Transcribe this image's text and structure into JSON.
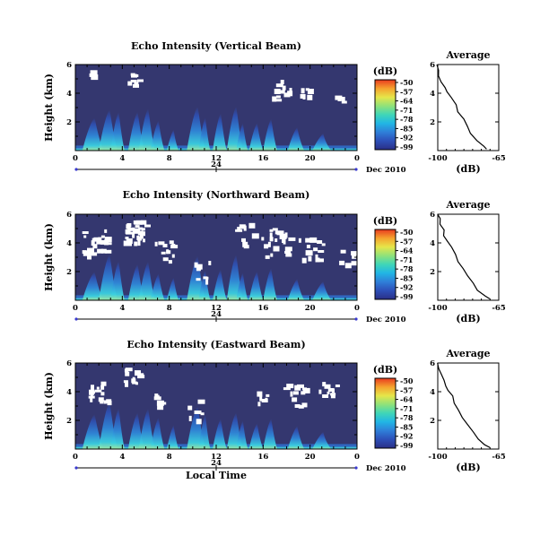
{
  "colors": {
    "background_field": "#34376f",
    "gap": "#ffffff",
    "colormap": [
      "#2a2f86",
      "#2d4fb8",
      "#2f7fd8",
      "#21b5e5",
      "#3fd6b8",
      "#8fe27a",
      "#e6e64a",
      "#f5a32e",
      "#e83a1f"
    ],
    "date_axis_accent": "#3a3ad0"
  },
  "chart_data": [
    {
      "type": "heatmap",
      "title": "Echo Intensity (Vertical Beam)",
      "ylabel": "Height (km)",
      "x_ticks": [
        "0",
        "4",
        "8",
        "12",
        "16",
        "20",
        "0"
      ],
      "xlim_hours": [
        0,
        24
      ],
      "y_ticks": [
        "2",
        "4",
        "6"
      ],
      "ylim_km": [
        0,
        6
      ],
      "colorbar": {
        "unit": "(dB)",
        "ticks": [
          "-50",
          "-57",
          "-64",
          "-71",
          "-78",
          "-85",
          "-92",
          "-99"
        ]
      },
      "date_axis": {
        "day": "24",
        "month_year": "Dec 2010"
      },
      "profile": {
        "title": "Average",
        "xlabel": "(dB)",
        "x_ticks": [
          "-100",
          "-65"
        ],
        "y_ticks": [
          "2",
          "4",
          "6"
        ],
        "xlim": [
          -100,
          -65
        ],
        "ylim": [
          0,
          6
        ],
        "x": [
          -72,
          -74,
          -78,
          -81,
          -83,
          -85,
          -88,
          -90,
          -92,
          -94,
          -96,
          -98,
          -99,
          -99,
          -100
        ],
        "y": [
          0.1,
          0.3,
          0.7,
          1.2,
          1.7,
          2.2,
          2.7,
          3.2,
          3.7,
          4.1,
          4.4,
          4.8,
          5.2,
          5.6,
          6.0
        ]
      }
    },
    {
      "type": "heatmap",
      "title": "Echo Intensity (Northward Beam)",
      "ylabel": "Height (km)",
      "x_ticks": [
        "0",
        "4",
        "8",
        "12",
        "16",
        "20",
        "0"
      ],
      "xlim_hours": [
        0,
        24
      ],
      "y_ticks": [
        "2",
        "4",
        "6"
      ],
      "ylim_km": [
        0,
        6
      ],
      "colorbar": {
        "unit": "(dB)",
        "ticks": [
          "-50",
          "-57",
          "-64",
          "-71",
          "-78",
          "-85",
          "-92",
          "-99"
        ]
      },
      "date_axis": {
        "day": "24",
        "month_year": "Dec 2010"
      },
      "profile": {
        "title": "Average",
        "xlabel": "(dB)",
        "x_ticks": [
          "-100",
          "-65"
        ],
        "y_ticks": [
          "2",
          "4",
          "6"
        ],
        "xlim": [
          -100,
          -65
        ],
        "ylim": [
          0,
          6
        ],
        "x": [
          -70,
          -73,
          -77,
          -80,
          -83,
          -86,
          -88,
          -90,
          -92,
          -94,
          -96,
          -97,
          -99,
          -99,
          -100
        ],
        "y": [
          0.1,
          0.3,
          0.7,
          1.2,
          1.7,
          2.2,
          2.7,
          3.2,
          3.7,
          4.1,
          4.5,
          4.9,
          5.3,
          5.7,
          6.0
        ]
      }
    },
    {
      "type": "heatmap",
      "title": "Echo Intensity (Eastward Beam)",
      "ylabel": "Height (km)",
      "xlabel": "Local Time",
      "x_ticks": [
        "0",
        "4",
        "8",
        "12",
        "16",
        "20",
        "0"
      ],
      "xlim_hours": [
        0,
        24
      ],
      "y_ticks": [
        "2",
        "4",
        "6"
      ],
      "ylim_km": [
        0,
        6
      ],
      "colorbar": {
        "unit": "(dB)",
        "ticks": [
          "-50",
          "-57",
          "-64",
          "-71",
          "-78",
          "-85",
          "-92",
          "-99"
        ]
      },
      "date_axis": {
        "day": "24",
        "month_year": "Dec 2010"
      },
      "profile": {
        "title": "Average",
        "xlabel": "(dB)",
        "x_ticks": [
          "-100",
          "-65"
        ],
        "y_ticks": [
          "2",
          "4",
          "6"
        ],
        "xlim": [
          -100,
          -65
        ],
        "ylim": [
          0,
          6
        ],
        "x": [
          -70,
          -73,
          -77,
          -80,
          -83,
          -86,
          -88,
          -90,
          -92,
          -94,
          -95,
          -97,
          -98,
          -99,
          -100
        ],
        "y": [
          0.1,
          0.3,
          0.7,
          1.2,
          1.7,
          2.2,
          2.7,
          3.2,
          3.7,
          4.1,
          4.4,
          4.8,
          5.2,
          5.6,
          6.0
        ]
      }
    }
  ]
}
